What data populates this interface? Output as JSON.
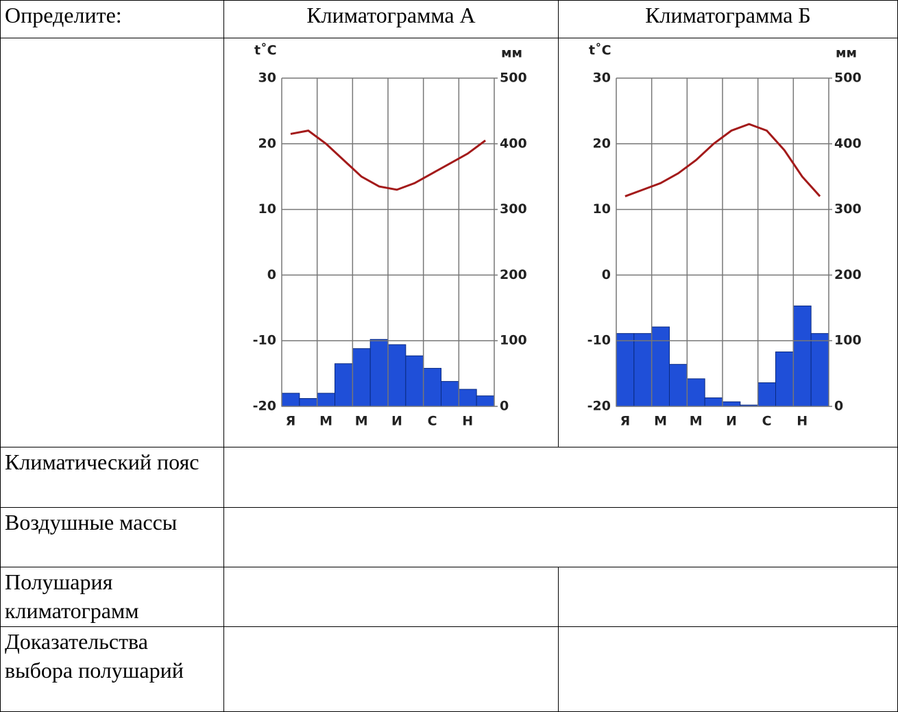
{
  "table": {
    "header": [
      "Определите:",
      "Климатограмма А",
      "Климатограмма Б"
    ],
    "rows": [
      [
        "Климатический пояс"
      ],
      [
        "Воздушные массы"
      ],
      [
        "Полушария климатограмм"
      ],
      [
        "Доказательства выбора полушарий"
      ]
    ]
  },
  "climatograms": [
    {
      "type": "bar-line",
      "ylabel": "t˚C",
      "y2label": "мм",
      "categories": [
        "Я",
        null,
        "М",
        null,
        "М",
        null,
        "И",
        null,
        "С",
        null,
        "Н",
        null
      ],
      "ylim": [
        -20,
        30
      ],
      "yticks": [
        -20,
        -10,
        0,
        10,
        20,
        30
      ],
      "y2lim": [
        0,
        500
      ],
      "y2ticks": [
        0,
        100,
        200,
        300,
        400,
        500
      ],
      "temperature": {
        "color": "#a31a1a",
        "axis": "y",
        "values": [
          21.5,
          22,
          20,
          17.5,
          15,
          13.5,
          13,
          14,
          15.5,
          17,
          18.5,
          20.5
        ]
      },
      "precipitation": {
        "color": "#1f4fd8",
        "axis": "y2",
        "values": [
          20,
          12,
          20,
          65,
          88,
          102,
          94,
          77,
          58,
          38,
          26,
          16
        ]
      }
    },
    {
      "type": "bar-line",
      "ylabel": "t˚C",
      "y2label": "мм",
      "categories": [
        "Я",
        null,
        "М",
        null,
        "М",
        null,
        "И",
        null,
        "С",
        null,
        "Н",
        null
      ],
      "ylim": [
        -20,
        30
      ],
      "yticks": [
        -20,
        -10,
        0,
        10,
        20,
        30
      ],
      "y2lim": [
        0,
        500
      ],
      "y2ticks": [
        0,
        100,
        200,
        300,
        400,
        500
      ],
      "temperature": {
        "color": "#a31a1a",
        "axis": "y",
        "values": [
          12,
          13,
          14,
          15.5,
          17.5,
          20,
          22,
          23,
          22,
          19,
          15,
          12
        ]
      },
      "precipitation": {
        "color": "#1f4fd8",
        "axis": "y2",
        "values": [
          111,
          111,
          121,
          64,
          42,
          13,
          7,
          2,
          36,
          83,
          153,
          111
        ]
      }
    }
  ]
}
